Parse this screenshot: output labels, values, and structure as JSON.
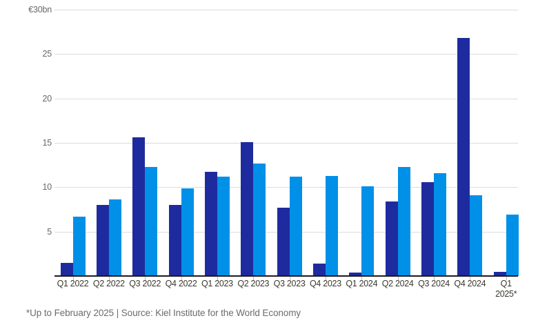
{
  "chart_data": {
    "type": "bar",
    "unit": "EUR bn",
    "categories": [
      "Q1 2022",
      "Q2 2022",
      "Q3 2022",
      "Q4 2022",
      "Q1 2023",
      "Q2 2023",
      "Q3 2023",
      "Q4 2023",
      "Q1 2024",
      "Q2 2024",
      "Q3 2024",
      "Q4 2024",
      "Q1\n2025*"
    ],
    "series": [
      {
        "name": "dark-blue-series",
        "color": "#1e2b9e",
        "values": [
          1.5,
          8.0,
          15.6,
          8.0,
          11.7,
          15.1,
          7.7,
          1.4,
          0.4,
          8.4,
          10.6,
          26.8,
          0.5
        ]
      },
      {
        "name": "light-blue-series",
        "color": "#0090e8",
        "values": [
          6.7,
          8.6,
          12.3,
          9.9,
          11.2,
          12.7,
          11.2,
          11.3,
          10.1,
          12.3,
          11.6,
          9.1,
          6.9
        ]
      }
    ],
    "y_axis": {
      "max": 30,
      "ticks": [
        {
          "value": 30,
          "label": "€30bn"
        },
        {
          "value": 25,
          "label": "25"
        },
        {
          "value": 20,
          "label": "20"
        },
        {
          "value": 15,
          "label": "15"
        },
        {
          "value": 10,
          "label": "10"
        },
        {
          "value": 5,
          "label": "5"
        }
      ]
    },
    "grid": true,
    "legend": false
  },
  "colors": {
    "dark_bar": "#1e2b9e",
    "light_bar": "#0090e8",
    "gridline": "#dbdbdf",
    "axis_line": "#1b1b20",
    "y_label": "#67676d",
    "x_label": "#3b382f",
    "footer": "#6b6b70"
  },
  "footer": {
    "note": "*Up to February 2025 | Source: Kiel Institute for the World Economy"
  }
}
